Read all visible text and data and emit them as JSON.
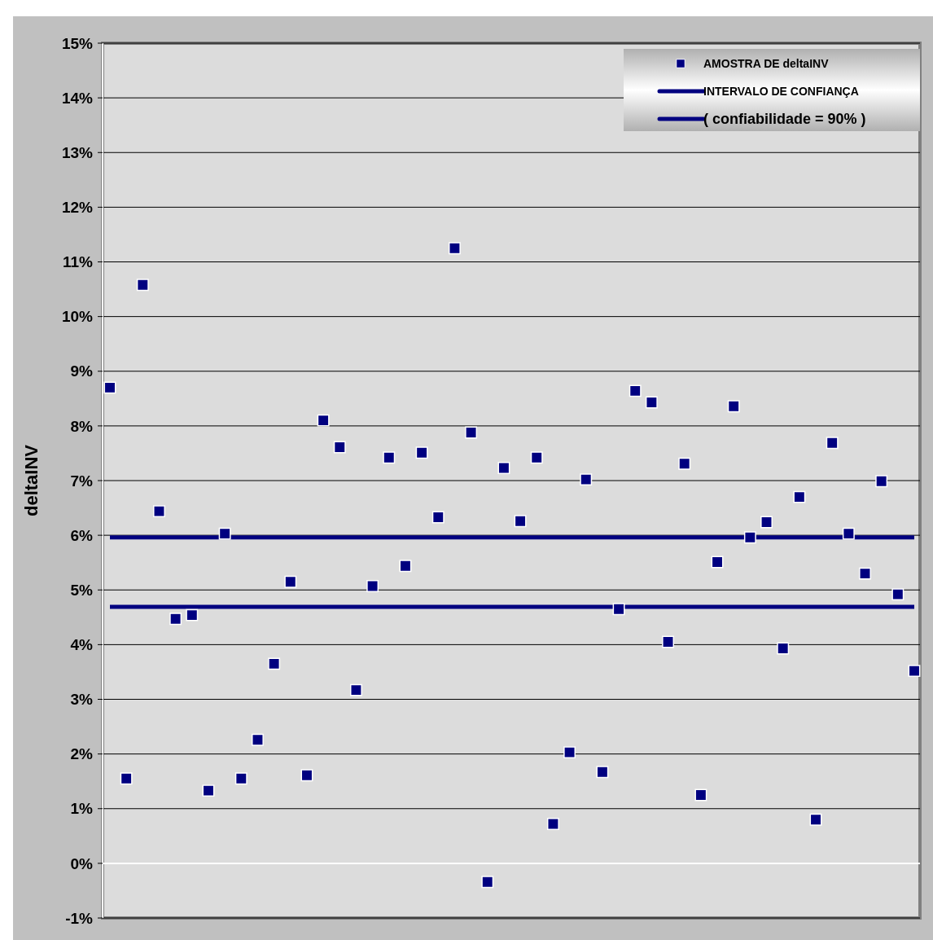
{
  "chart_data": {
    "type": "scatter",
    "ylabel": "deltaINV",
    "categories": [
      null,
      null,
      null,
      null,
      null,
      null,
      null,
      null,
      null,
      null,
      null,
      null,
      null,
      null,
      null,
      null,
      null,
      null,
      null,
      null,
      null,
      null,
      null,
      null,
      null,
      null,
      null,
      null,
      null,
      null,
      null,
      null,
      null,
      null,
      null,
      null,
      null,
      null,
      null,
      null,
      null,
      null,
      null,
      null,
      null,
      null,
      null,
      null,
      null,
      null
    ],
    "series": [
      {
        "name": "AMOSTRA DE deltaINV",
        "color": "#000080",
        "values": [
          8.7,
          1.55,
          10.58,
          6.44,
          4.47,
          4.54,
          1.33,
          6.03,
          1.55,
          2.26,
          3.65,
          5.15,
          1.61,
          8.1,
          7.61,
          3.17,
          5.07,
          7.42,
          5.44,
          7.51,
          6.33,
          11.25,
          7.88,
          -0.34,
          7.23,
          6.26,
          7.42,
          0.72,
          2.03,
          7.02,
          1.67,
          4.65,
          8.64,
          8.43,
          4.05,
          7.31,
          1.25,
          5.51,
          8.36,
          5.96,
          6.24,
          3.93,
          6.7,
          0.8,
          7.69,
          6.03,
          5.3,
          6.99,
          4.92,
          3.52
        ]
      },
      {
        "name": "INTERVALO DE CONFIANÇA",
        "type": "line",
        "marker": "none",
        "color": "#000080",
        "values": [
          5.96,
          5.96,
          5.96,
          5.96,
          5.96,
          5.96,
          5.96,
          5.96,
          5.96,
          5.96,
          5.96,
          5.96,
          5.96,
          5.96,
          5.96,
          5.96,
          5.96,
          5.96,
          5.96,
          5.96,
          5.96,
          5.96,
          5.96,
          5.96,
          5.96,
          5.96,
          5.96,
          5.96,
          5.96,
          5.96,
          5.96,
          5.96,
          5.96,
          5.96,
          5.96,
          5.96,
          5.96,
          5.96,
          5.96,
          5.96,
          5.96,
          5.96,
          5.96,
          5.96,
          5.96,
          5.96,
          5.96,
          5.96,
          5.96,
          5.96
        ]
      },
      {
        "name": "( confiabilidade = 90% )",
        "type": "line",
        "marker": "none",
        "color": "#000080",
        "values": [
          4.69,
          4.69,
          4.69,
          4.69,
          4.69,
          4.69,
          4.69,
          4.69,
          4.69,
          4.69,
          4.69,
          4.69,
          4.69,
          4.69,
          4.69,
          4.69,
          4.69,
          4.69,
          4.69,
          4.69,
          4.69,
          4.69,
          4.69,
          4.69,
          4.69,
          4.69,
          4.69,
          4.69,
          4.69,
          4.69,
          4.69,
          4.69,
          4.69,
          4.69,
          4.69,
          4.69,
          4.69,
          4.69,
          4.69,
          4.69,
          4.69,
          4.69,
          4.69,
          4.69,
          4.69,
          4.69,
          4.69,
          4.69,
          4.69,
          4.69
        ]
      }
    ],
    "ylim": [
      -1,
      15
    ],
    "yticks": [
      {
        "value": -1,
        "label": "-1%"
      },
      {
        "value": 0,
        "label": "0%"
      },
      {
        "value": 1,
        "label": "1%"
      },
      {
        "value": 2,
        "label": "2%"
      },
      {
        "value": 3,
        "label": "3%"
      },
      {
        "value": 4,
        "label": "4%"
      },
      {
        "value": 5,
        "label": "5%"
      },
      {
        "value": 6,
        "label": "6%"
      },
      {
        "value": 7,
        "label": "7%"
      },
      {
        "value": 8,
        "label": "8%"
      },
      {
        "value": 9,
        "label": "9%"
      },
      {
        "value": 10,
        "label": "10%"
      },
      {
        "value": 11,
        "label": "11%"
      },
      {
        "value": 12,
        "label": "12%"
      },
      {
        "value": 13,
        "label": "13%"
      },
      {
        "value": 14,
        "label": "14%"
      },
      {
        "value": 15,
        "label": "15%"
      }
    ],
    "grid": "y",
    "legend": "top right",
    "marker": "square"
  }
}
